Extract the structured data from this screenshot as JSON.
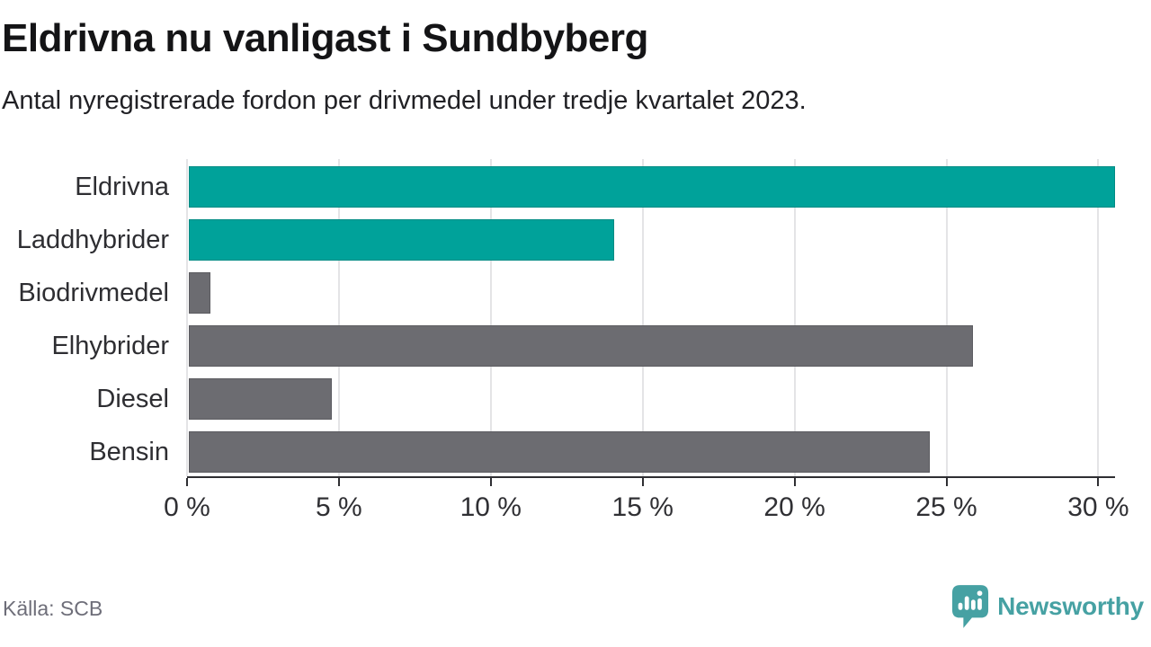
{
  "header": {
    "title": "Eldrivna nu vanligast i Sundbyberg",
    "subtitle": "Antal nyregistrerade fordon per drivmedel under tredje kvartalet 2023."
  },
  "chart_data": {
    "type": "bar",
    "orientation": "horizontal",
    "title": "Eldrivna nu vanligast i Sundbyberg",
    "subtitle": "Antal nyregistrerade fordon per drivmedel under tredje kvartalet 2023.",
    "categories": [
      "Eldrivna",
      "Laddhybrider",
      "Biodrivmedel",
      "Elhybrider",
      "Diesel",
      "Bensin"
    ],
    "values": [
      30.5,
      14.0,
      0.7,
      25.8,
      4.7,
      24.4
    ],
    "unit": "%",
    "bar_colors": [
      "#00a29a",
      "#00a29a",
      "#6c6c71",
      "#6c6c71",
      "#6c6c71",
      "#6c6c71"
    ],
    "x_ticks": [
      0,
      5,
      10,
      15,
      20,
      25,
      30
    ],
    "x_tick_labels": [
      "0 %",
      "5 %",
      "10 %",
      "15 %",
      "20 %",
      "25 %",
      "30 %"
    ],
    "xlim": [
      0,
      30.55
    ],
    "grid": true,
    "legend": "none",
    "xlabel": "",
    "ylabel": ""
  },
  "footer": {
    "source": "Källa: SCB",
    "brand": "Newsworthy"
  },
  "colors": {
    "accent_teal": "#00a29a",
    "bar_gray": "#6c6c71",
    "logo_teal": "#46a1a3",
    "gridline": "#e4e4e6",
    "axis": "#2f2f33",
    "title_text": "#141416",
    "label_text": "#2e2e32",
    "muted_text": "#6e6e79"
  }
}
